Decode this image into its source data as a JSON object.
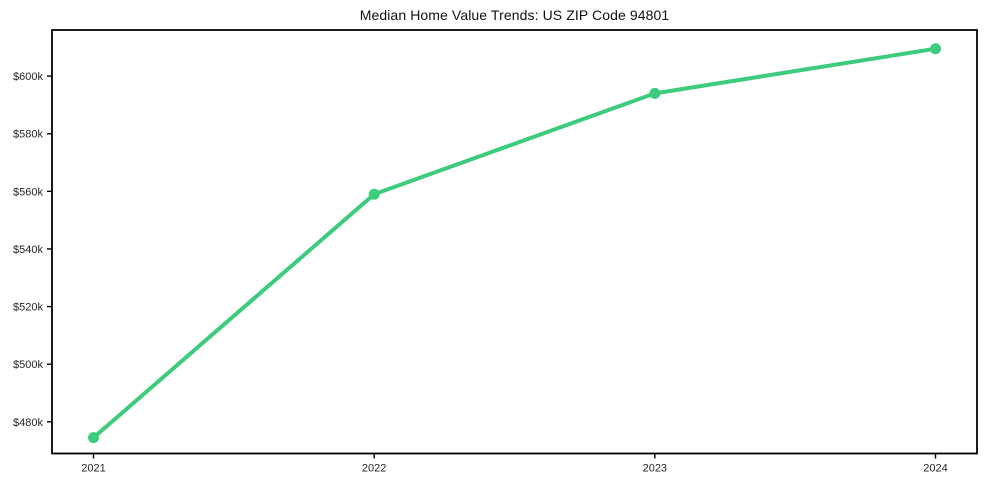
{
  "chart": {
    "background": "#ffffff",
    "line_color": "#3dcb7d",
    "marker_color": "#3dcb7d",
    "axis_color": "#000000",
    "tick_label_color": "#262626",
    "title_color": "#111111"
  },
  "chart_data": {
    "type": "line",
    "title": "Median Home Value Trends: US ZIP Code 94801",
    "x": [
      "2021",
      "2022",
      "2023",
      "2024"
    ],
    "series": [
      {
        "name": "Median Home Value",
        "values": [
          474500,
          559000,
          594000,
          609500
        ],
        "color": "#3dcb7d",
        "marker": "circle"
      }
    ],
    "xlabel": "",
    "ylabel": "",
    "ylim": [
      469000,
      616000
    ],
    "y_ticks": [
      {
        "value": 480000,
        "label": "$480k"
      },
      {
        "value": 500000,
        "label": "$500k"
      },
      {
        "value": 520000,
        "label": "$520k"
      },
      {
        "value": 540000,
        "label": "$540k"
      },
      {
        "value": 560000,
        "label": "$560k"
      },
      {
        "value": 580000,
        "label": "$580k"
      },
      {
        "value": 600000,
        "label": "$600k"
      }
    ],
    "grid": false,
    "legend": "none"
  }
}
